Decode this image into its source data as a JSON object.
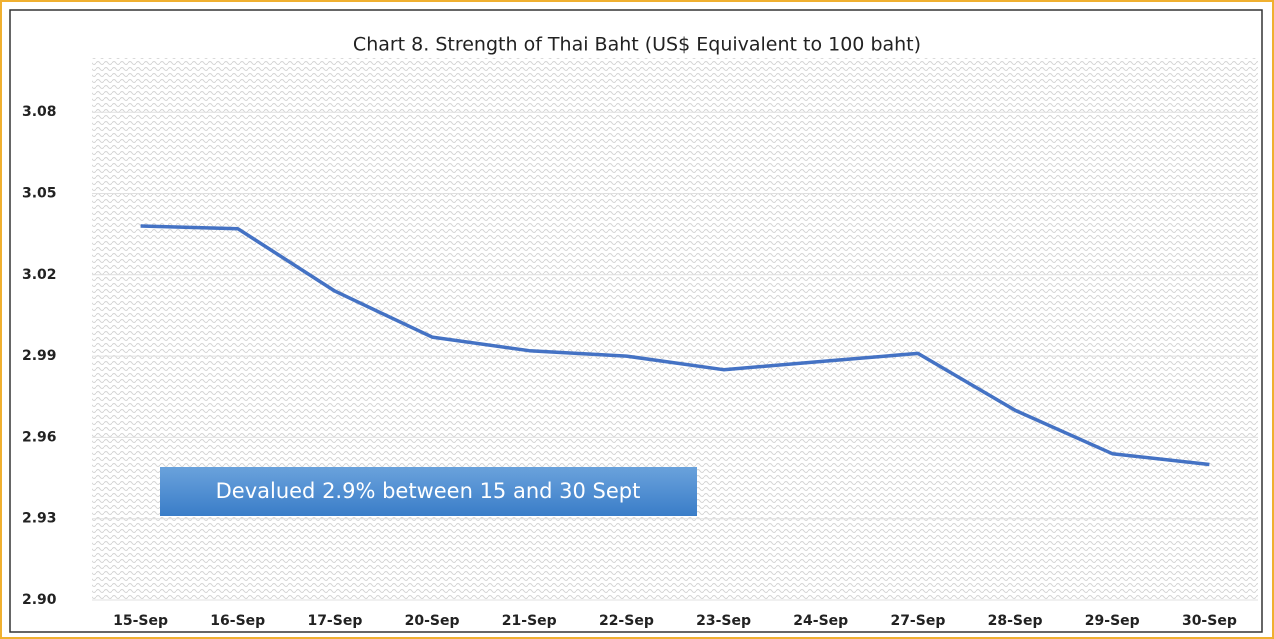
{
  "chart_data": {
    "type": "line",
    "title": "Chart 8. Strength of Thai Baht (US$ Equivalent to 100 baht)",
    "annotation": "Devalued 2.9% between 15 and 30 Sept",
    "categories": [
      "15-Sep",
      "16-Sep",
      "17-Sep",
      "20-Sep",
      "21-Sep",
      "22-Sep",
      "23-Sep",
      "24-Sep",
      "27-Sep",
      "28-Sep",
      "29-Sep",
      "30-Sep"
    ],
    "values": [
      3.038,
      3.037,
      3.014,
      2.997,
      2.992,
      2.99,
      2.985,
      2.988,
      2.991,
      2.97,
      2.954,
      2.95
    ],
    "color": "#4472c4",
    "ylim": [
      2.9,
      3.1
    ],
    "yticks": [
      {
        "value": 2.9,
        "label": "2.90"
      },
      2.93,
      2.96,
      2.99,
      3.02,
      3.05,
      3.08
    ],
    "grid": true
  }
}
